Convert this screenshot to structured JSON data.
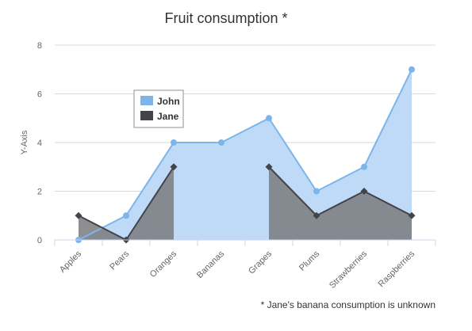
{
  "chart_data": {
    "type": "area",
    "title": "Fruit consumption *",
    "credits": "* Jane's banana consumption is unknown",
    "xlabel": "",
    "ylabel": "Y-Axis",
    "ylim": [
      0,
      8
    ],
    "yticks": [
      "0",
      "2",
      "4",
      "6",
      "8"
    ],
    "categories": [
      "Apples",
      "Pears",
      "Oranges",
      "Bananas",
      "Grapes",
      "Plums",
      "Strawberries",
      "Raspberries"
    ],
    "grid": true,
    "legend_position": "top-left, inside plot area",
    "series": [
      {
        "name": "John",
        "values": [
          0,
          1,
          4,
          4,
          5,
          2,
          3,
          7
        ],
        "color": "#7cb5ec",
        "fill": "#bfdaf6",
        "marker": "circle"
      },
      {
        "name": "Jane",
        "values": [
          1,
          0,
          3,
          null,
          3,
          1,
          2,
          1
        ],
        "color": "#434348",
        "fill": "#7a7a7e",
        "marker": "diamond"
      }
    ]
  }
}
